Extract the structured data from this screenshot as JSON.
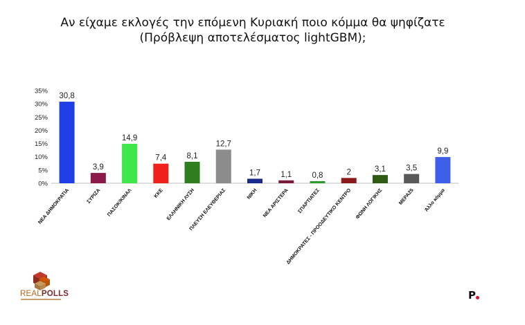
{
  "header": {
    "title_line1": "Αν είχαμε εκλογές την επόμενη Κυριακή ποιο κόμμα θα ψηφίζατε",
    "title_line2": "(Πρόβλεψη αποτελέσματος lightGBM);"
  },
  "branding": {
    "real": "REAL",
    "polls": "POLLS",
    "corner_mark": "P"
  },
  "chart_data": {
    "type": "bar",
    "title": "Αν είχαμε εκλογές την επόμενη Κυριακή ποιο κόμμα θα ψηφίζατε (Πρόβλεψη αποτελέσματος lightGBM);",
    "xlabel": "",
    "ylabel": "",
    "ylim": [
      0,
      35
    ],
    "yticks": [
      "0%",
      "5%",
      "10%",
      "15%",
      "20%",
      "25%",
      "30%",
      "35%"
    ],
    "grid": false,
    "categories": [
      "ΝΕΑ ΔΗΜΟΚΡΑΤΙΑ",
      "ΣΥΡΙΖΑ",
      "ΠΑΣΟΚ/ΚΙΝΑΛ",
      "ΚΚΕ",
      "ΕΛΛΗΝΙΚΗ ΛΥΣΗ",
      "ΠΛΕΥΣΗ ΕΛΕΥΘΕΡΙΑΣ",
      "ΝΙΚΗ",
      "ΝΕΑ ΑΡΙΣΤΕΡΑ",
      "ΣΠΑΡΤΙΑΤΕΣ",
      "ΔΗΜΟΚΡΑΤΕΣ - ΠΡΟΟΔΕΥΤΙΚΟ ΚΕΝΤΡΟ",
      "ΦΩΝΗ ΛΟΓΙΚΗΣ",
      "ΜΕΡΑ25",
      "Άλλο κόμμα"
    ],
    "values": [
      30.8,
      3.9,
      14.9,
      7.4,
      8.1,
      12.7,
      1.7,
      1.1,
      0.8,
      2,
      3.1,
      3.5,
      9.9
    ],
    "value_labels": [
      "30,8",
      "3,9",
      "14,9",
      "7,4",
      "8,1",
      "12,7",
      "1,7",
      "1,1",
      "0,8",
      "2",
      "3,1",
      "3,5",
      "9,9"
    ],
    "colors": [
      "#1f3fe6",
      "#8b1a4a",
      "#3fe84a",
      "#f0201a",
      "#2e7d1e",
      "#8c8c8c",
      "#1a2a8a",
      "#7a1a3a",
      "#2e9a2e",
      "#8b1a1a",
      "#2e5a14",
      "#595959",
      "#3f5fe8"
    ]
  }
}
